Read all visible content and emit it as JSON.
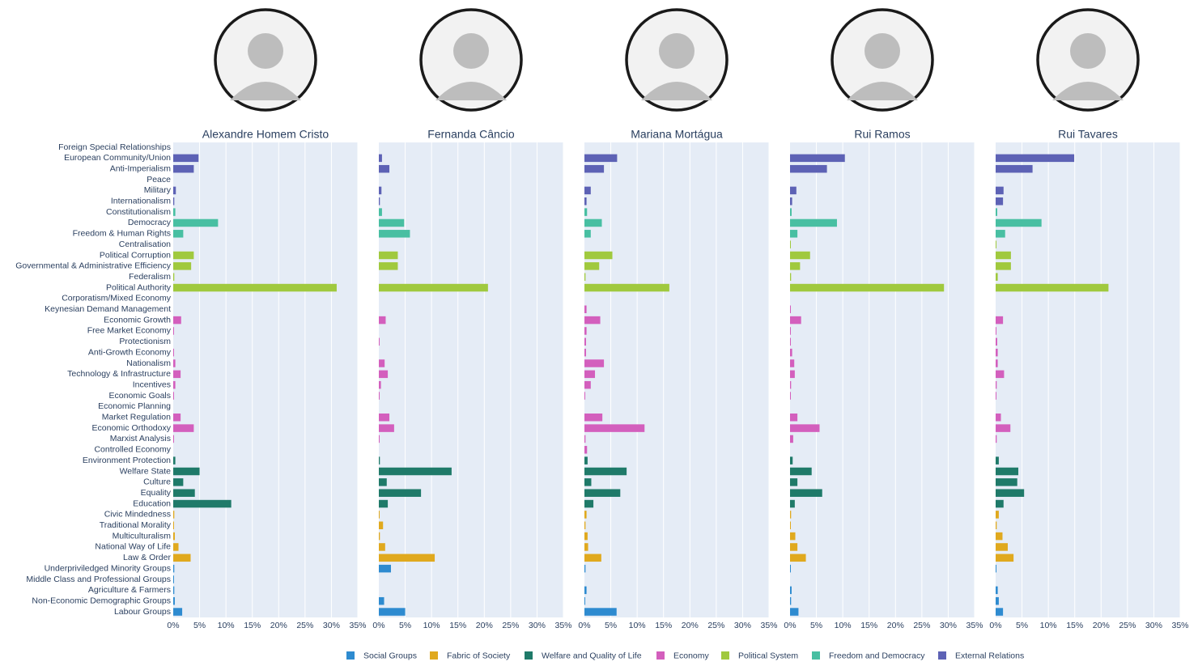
{
  "colors": {
    "Social Groups": "#2e8bd0",
    "Fabric of Society": "#e0a91e",
    "Welfare and Quality of Life": "#1f7a69",
    "Economy": "#d35fbd",
    "Political System": "#a0c93e",
    "Freedom and Democracy": "#48bfa2",
    "External Relations": "#5d62b5"
  },
  "chart_data": {
    "type": "bar",
    "orientation": "horizontal",
    "xlim": [
      0,
      35
    ],
    "xticks": [
      "0%",
      "5%",
      "10%",
      "15%",
      "20%",
      "25%",
      "30%",
      "35%"
    ],
    "grid": true,
    "legend_position": "bottom",
    "legend": [
      "Social Groups",
      "Fabric of Society",
      "Welfare and Quality of Life",
      "Economy",
      "Political System",
      "Freedom and Democracy",
      "External Relations"
    ],
    "categories": [
      "Foreign Special Relationships",
      "European Community/Union",
      "Anti-Imperialism",
      "Peace",
      "Military",
      "Internationalism",
      "Constitutionalism",
      "Democracy",
      "Freedom & Human Rights",
      "Centralisation",
      "Political Corruption",
      "Governmental & Administrative Efficiency",
      "Federalism",
      "Political Authority",
      "Corporatism/Mixed Economy",
      "Keynesian Demand Management",
      "Economic Growth",
      "Free Market Economy",
      "Protectionism",
      "Anti-Growth Economy",
      "Nationalism",
      "Technology & Infrastructure",
      "Incentives",
      "Economic Goals",
      "Economic Planning",
      "Market Regulation",
      "Economic Orthodoxy",
      "Marxist Analysis",
      "Controlled Economy",
      "Environment Protection",
      "Welfare State",
      "Culture",
      "Equality",
      "Education",
      "Civic Mindedness",
      "Traditional Morality",
      "Multiculturalism",
      "National Way of Life",
      "Law & Order",
      "Underpriviledged Minority Groups",
      "Middle Class and Professional Groups",
      "Agriculture & Farmers",
      "Non-Economic Demographic Groups",
      "Labour Groups"
    ],
    "category_groups": [
      "External Relations",
      "External Relations",
      "External Relations",
      "External Relations",
      "External Relations",
      "External Relations",
      "Freedom and Democracy",
      "Freedom and Democracy",
      "Freedom and Democracy",
      "Political System",
      "Political System",
      "Political System",
      "Political System",
      "Political System",
      "Economy",
      "Economy",
      "Economy",
      "Economy",
      "Economy",
      "Economy",
      "Economy",
      "Economy",
      "Economy",
      "Economy",
      "Economy",
      "Economy",
      "Economy",
      "Economy",
      "Economy",
      "Welfare and Quality of Life",
      "Welfare and Quality of Life",
      "Welfare and Quality of Life",
      "Welfare and Quality of Life",
      "Welfare and Quality of Life",
      "Fabric of Society",
      "Fabric of Society",
      "Fabric of Society",
      "Fabric of Society",
      "Fabric of Society",
      "Social Groups",
      "Social Groups",
      "Social Groups",
      "Social Groups",
      "Social Groups"
    ],
    "series": [
      {
        "name": "Alexandre Homem Cristo",
        "values": [
          0,
          4.8,
          3.9,
          0,
          0.5,
          0.2,
          0.4,
          8.5,
          1.9,
          0,
          3.9,
          3.4,
          0.2,
          31.0,
          0,
          0,
          1.5,
          0.1,
          0,
          0.1,
          0.4,
          1.4,
          0.4,
          0.1,
          0,
          1.4,
          3.9,
          0.1,
          0,
          0.4,
          5.0,
          1.9,
          4.1,
          11.0,
          0.2,
          0.1,
          0.3,
          1.0,
          3.3,
          0.2,
          0.1,
          0.2,
          0.3,
          1.7
        ]
      },
      {
        "name": "Fernanda Câncio",
        "values": [
          0,
          0.6,
          2.0,
          0,
          0.5,
          0.2,
          0.6,
          4.8,
          5.9,
          0,
          3.6,
          3.6,
          0,
          20.7,
          0,
          0,
          1.3,
          0,
          0.1,
          0,
          1.1,
          1.7,
          0.4,
          0.1,
          0,
          2.0,
          2.9,
          0.1,
          0,
          0.2,
          13.8,
          1.5,
          8.0,
          1.7,
          0.1,
          0.8,
          0.2,
          1.2,
          10.6,
          2.3,
          0,
          0,
          1.0,
          5.0
        ]
      },
      {
        "name": "Mariana Mortágua",
        "values": [
          0,
          6.2,
          3.7,
          0,
          1.2,
          0.4,
          0.5,
          3.3,
          1.2,
          0,
          5.3,
          2.8,
          0.2,
          16.1,
          0,
          0.4,
          3.0,
          0.4,
          0.3,
          0.3,
          3.7,
          2.0,
          1.2,
          0.1,
          0,
          3.4,
          11.4,
          0.2,
          0.5,
          0.6,
          8.0,
          1.3,
          6.8,
          1.7,
          0.4,
          0.2,
          0.6,
          0.7,
          3.2,
          0.2,
          0,
          0.4,
          0.1,
          6.1
        ]
      },
      {
        "name": "Rui Ramos",
        "values": [
          0,
          10.4,
          7.0,
          0,
          1.2,
          0.4,
          0.3,
          8.9,
          1.4,
          0.1,
          3.8,
          1.9,
          0.2,
          29.2,
          0,
          0.1,
          2.1,
          0.1,
          0.1,
          0.4,
          0.8,
          0.9,
          0.2,
          0.1,
          0,
          1.4,
          5.6,
          0.6,
          0,
          0.5,
          4.1,
          1.4,
          6.1,
          0.9,
          0.2,
          0.1,
          1.0,
          1.4,
          3.0,
          0.1,
          0,
          0.3,
          0.2,
          1.6
        ]
      },
      {
        "name": "Rui Tavares",
        "values": [
          0,
          14.9,
          7.0,
          0,
          1.5,
          1.4,
          0.3,
          8.7,
          1.8,
          0.1,
          2.9,
          2.9,
          0.4,
          21.4,
          0,
          0,
          1.4,
          0.1,
          0.3,
          0.4,
          0.4,
          1.6,
          0.2,
          0.1,
          0,
          1.0,
          2.8,
          0.2,
          0,
          0.6,
          4.3,
          4.1,
          5.4,
          1.5,
          0.6,
          0.2,
          1.3,
          2.3,
          3.4,
          0.1,
          0,
          0.4,
          0.6,
          1.4
        ]
      }
    ]
  }
}
